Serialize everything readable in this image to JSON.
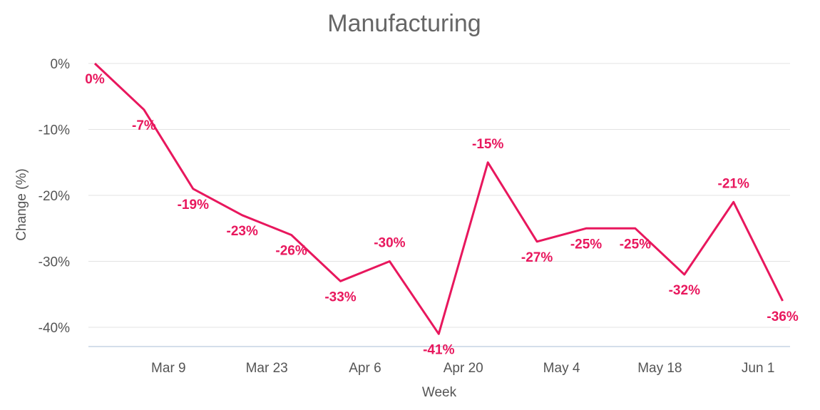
{
  "chart_data": {
    "type": "line",
    "title": "Manufacturing",
    "xlabel": "Week",
    "ylabel": "Change (%)",
    "ylim": [
      -41,
      0
    ],
    "yticks": [
      0,
      -10,
      -20,
      -30,
      -40
    ],
    "ytick_labels": [
      "0%",
      "-10%",
      "-20%",
      "-30%",
      "-40%"
    ],
    "xtick_labels": [
      "Mar 9",
      "Mar 23",
      "Apr 6",
      "Apr 20",
      "May 4",
      "May 18",
      "Jun 1"
    ],
    "xtick_positions": [
      1.5,
      3.5,
      5.5,
      7.5,
      9.5,
      11.5,
      13.5
    ],
    "grid": true,
    "color": "#e8175d",
    "series": [
      {
        "values": [
          0,
          -7,
          -19,
          -23,
          -26,
          -33,
          -30,
          -41,
          -15,
          -27,
          -25,
          -25,
          -32,
          -21,
          -36
        ],
        "labels": [
          "0%",
          "-7%",
          "-19%",
          "-23%",
          "-26%",
          "-33%",
          "-30%",
          "-41%",
          "-15%",
          "-27%",
          "-25%",
          "-25%",
          "-32%",
          "-21%",
          "-36%"
        ]
      }
    ]
  }
}
